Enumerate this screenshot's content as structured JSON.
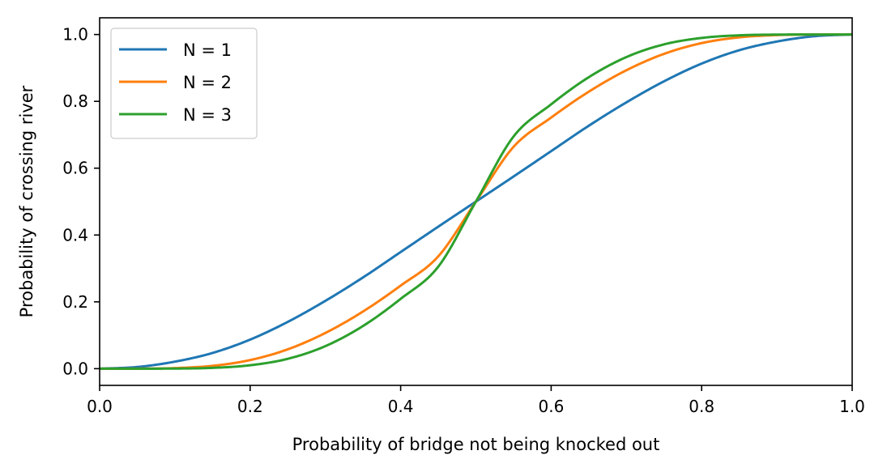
{
  "chart_data": {
    "type": "line",
    "title": "",
    "xlabel": "Probability of bridge not being knocked out",
    "ylabel": "Probability of crossing river",
    "xlim": [
      0.0,
      1.0
    ],
    "ylim": [
      -0.05,
      1.05
    ],
    "x_ticks": [
      "0.0",
      "0.2",
      "0.4",
      "0.6",
      "0.8",
      "1.0"
    ],
    "y_ticks": [
      "0.0",
      "0.2",
      "0.4",
      "0.6",
      "0.8",
      "1.0"
    ],
    "grid": false,
    "legend_position": "upper-left",
    "x": [
      0.0,
      0.05,
      0.1,
      0.15,
      0.2,
      0.25,
      0.3,
      0.35,
      0.4,
      0.45,
      0.5,
      0.55,
      0.6,
      0.65,
      0.7,
      0.75,
      0.8,
      0.85,
      0.9,
      0.95,
      1.0
    ],
    "series": [
      {
        "name": "N = 1",
        "color": "#1f77b4",
        "values": [
          0.0,
          0.005,
          0.021,
          0.047,
          0.087,
          0.14,
          0.203,
          0.273,
          0.349,
          0.425,
          0.5,
          0.575,
          0.651,
          0.727,
          0.797,
          0.86,
          0.913,
          0.953,
          0.979,
          0.995,
          1.0
        ]
      },
      {
        "name": "N = 2",
        "color": "#ff7f0e",
        "values": [
          0.0,
          0.0001,
          0.0017,
          0.0084,
          0.0257,
          0.0579,
          0.1069,
          0.1711,
          0.2485,
          0.3362,
          0.5,
          0.6638,
          0.7515,
          0.8289,
          0.8931,
          0.9421,
          0.9743,
          0.9916,
          0.9983,
          0.9999,
          1.0
        ]
      },
      {
        "name": "N = 3",
        "color": "#2ca02c",
        "values": [
          0.0,
          2e-05,
          0.0003,
          0.0024,
          0.0102,
          0.0295,
          0.0675,
          0.1277,
          0.2089,
          0.3053,
          0.5,
          0.6947,
          0.7911,
          0.8723,
          0.9325,
          0.9705,
          0.9898,
          0.9976,
          0.9997,
          1.0,
          1.0
        ]
      }
    ]
  }
}
